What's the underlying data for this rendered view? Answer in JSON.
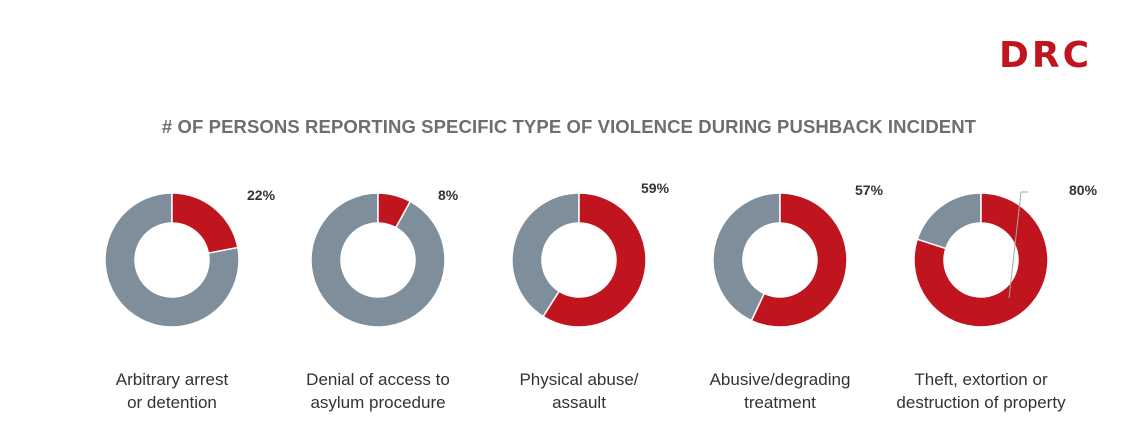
{
  "logo": {
    "text": "DRC"
  },
  "chart_data": {
    "type": "pie",
    "variant": "donut",
    "title": "# OF PERSONS REPORTING SPECIFIC TYPE OF VIOLENCE DURING PUSHBACK INCIDENT",
    "unit": "%",
    "colors": {
      "reported": "#c0141e",
      "remainder": "#7f8e9b"
    },
    "items": [
      {
        "category": [
          "Arbitrary arrest",
          "or detention"
        ],
        "value": 22,
        "label": "22%"
      },
      {
        "category": [
          "Denial of access to",
          "asylum procedure"
        ],
        "value": 8,
        "label": "8%"
      },
      {
        "category": [
          "Physical abuse/",
          "assault"
        ],
        "value": 59,
        "label": "59%"
      },
      {
        "category": [
          "Abusive/degrading",
          "treatment"
        ],
        "value": 57,
        "label": "57%"
      },
      {
        "category": [
          "Theft, extortion or",
          "destruction of property"
        ],
        "value": 80,
        "label": "80%"
      }
    ]
  }
}
